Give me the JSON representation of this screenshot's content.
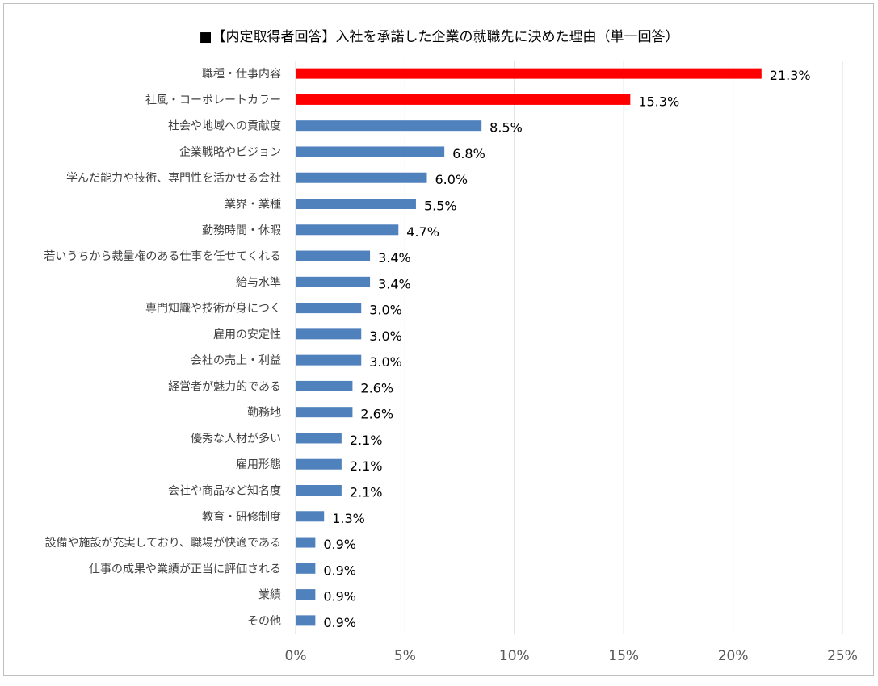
{
  "chart_data": {
    "type": "bar",
    "orientation": "horizontal",
    "title": "■【内定取得者回答】入社を承諾した企業の就職先に決めた理由（単一回答）",
    "categories": [
      "職種・仕事内容",
      "社風・コーポレートカラー",
      "社会や地域への貢献度",
      "企業戦略やビジョン",
      "学んだ能力や技術、専門性を活かせる会社",
      "業界・業種",
      "勤務時間・休暇",
      "若いうちから裁量権のある仕事を任せてくれる",
      "給与水準",
      "専門知識や技術が身につく",
      "雇用の安定性",
      "会社の売上・利益",
      "経営者が魅力的である",
      "勤務地",
      "優秀な人材が多い",
      "雇用形態",
      "会社や商品など知名度",
      "教育・研修制度",
      "設備や施設が充実しており、職場が快適である",
      "仕事の成果や業績が正当に評価される",
      "業績",
      "その他"
    ],
    "values": [
      21.3,
      15.3,
      8.5,
      6.8,
      6.0,
      5.5,
      4.7,
      3.4,
      3.4,
      3.0,
      3.0,
      3.0,
      2.6,
      2.6,
      2.1,
      2.1,
      2.1,
      1.3,
      0.9,
      0.9,
      0.9,
      0.9
    ],
    "data_labels": [
      "21.3%",
      "15.3%",
      "8.5%",
      "6.8%",
      "6.0%",
      "5.5%",
      "4.7%",
      "3.4%",
      "3.4%",
      "3.0%",
      "3.0%",
      "3.0%",
      "2.6%",
      "2.6%",
      "2.1%",
      "2.1%",
      "2.1%",
      "1.3%",
      "0.9%",
      "0.9%",
      "0.9%",
      "0.9%"
    ],
    "highlight_count": 2,
    "colors": {
      "highlight": "#ff0000",
      "default": "#4f81bd",
      "grid": "#d9d9d9"
    },
    "xlim": [
      0,
      25
    ],
    "xticks": [
      0,
      5,
      10,
      15,
      20,
      25
    ],
    "xtick_labels": [
      "0%",
      "5%",
      "10%",
      "15%",
      "20%",
      "25%"
    ],
    "grid": true,
    "legend": "none"
  }
}
